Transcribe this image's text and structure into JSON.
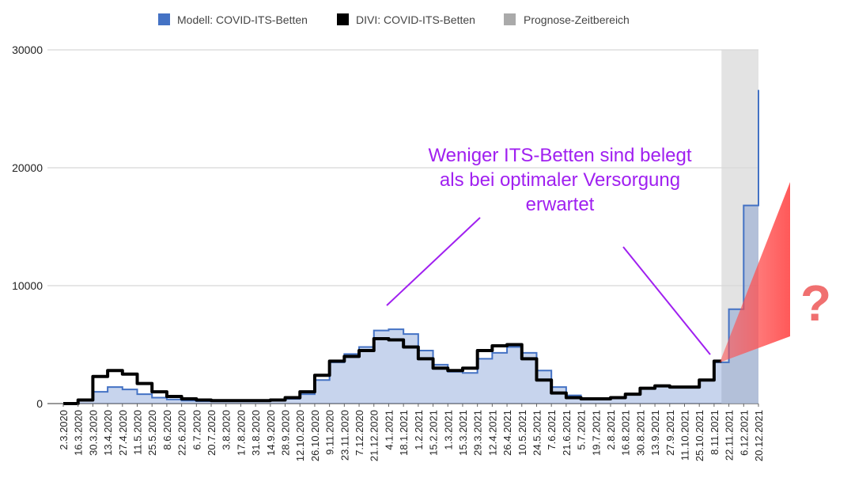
{
  "chart_data": {
    "type": "area",
    "title": "",
    "xlabel": "",
    "ylabel": "",
    "ylim": [
      0,
      30000
    ],
    "yticks": [
      0,
      10000,
      20000,
      30000
    ],
    "grid": true,
    "legend_position": "top-center",
    "legend": [
      {
        "label": "Modell: COVID-ITS-Betten",
        "color": "#4472c4"
      },
      {
        "label": "DIVI: COVID-ITS-Betten",
        "color": "#000000"
      },
      {
        "label": "Prognose-Zeitbereich",
        "color": "#aaaaaa"
      }
    ],
    "x": [
      "2.3.2020",
      "16.3.2020",
      "30.3.2020",
      "13.4.2020",
      "27.4.2020",
      "11.5.2020",
      "25.5.2020",
      "8.6.2020",
      "22.6.2020",
      "6.7.2020",
      "20.7.2020",
      "3.8.2020",
      "17.8.2020",
      "31.8.2020",
      "14.9.2020",
      "28.9.2020",
      "12.10.2020",
      "26.10.2020",
      "9.11.2020",
      "23.11.2020",
      "7.12.2020",
      "21.12.2020",
      "4.1.2021",
      "18.1.2021",
      "1.2.2021",
      "15.2.2021",
      "1.3.2021",
      "15.3.2021",
      "29.3.2021",
      "12.4.2021",
      "26.4.2021",
      "10.5.2021",
      "24.5.2021",
      "7.6.2021",
      "21.6.2021",
      "5.7.2021",
      "19.7.2021",
      "2.8.2021",
      "16.8.2021",
      "30.8.2021",
      "13.9.2021",
      "27.9.2021",
      "11.10.2021",
      "25.10.2021",
      "8.11.2021",
      "22.11.2021",
      "6.12.2021",
      "20.12.2021"
    ],
    "forecast_range": [
      "15.11.2021",
      "21.12.2021"
    ],
    "series": [
      {
        "name": "Modell: COVID-ITS-Betten",
        "values": [
          0,
          300,
          1000,
          1400,
          1200,
          800,
          500,
          350,
          250,
          200,
          200,
          200,
          200,
          200,
          250,
          400,
          800,
          2000,
          3500,
          4200,
          4800,
          6200,
          6300,
          5900,
          4500,
          3300,
          2700,
          2600,
          3800,
          4300,
          4800,
          4300,
          2800,
          1400,
          700,
          400,
          350,
          500,
          800,
          1300,
          1500,
          1400,
          1400,
          2000,
          3500,
          8000,
          16800,
          26600
        ]
      },
      {
        "name": "DIVI: COVID-ITS-Betten",
        "values": [
          0,
          300,
          2300,
          2800,
          2500,
          1700,
          1000,
          600,
          400,
          300,
          250,
          250,
          250,
          250,
          300,
          500,
          1000,
          2400,
          3600,
          4000,
          4500,
          5500,
          5400,
          4800,
          3800,
          3000,
          2800,
          3000,
          4500,
          4900,
          5000,
          3800,
          2000,
          900,
          500,
          400,
          400,
          500,
          800,
          1300,
          1500,
          1400,
          1400,
          2000,
          3600,
          null,
          null,
          null
        ]
      }
    ],
    "annotations": [
      {
        "text_lines": [
          "Weniger ITS-Betten sind belegt",
          "als bei optimaler Versorgung",
          "erwartet"
        ]
      },
      {
        "text": "?"
      }
    ]
  }
}
